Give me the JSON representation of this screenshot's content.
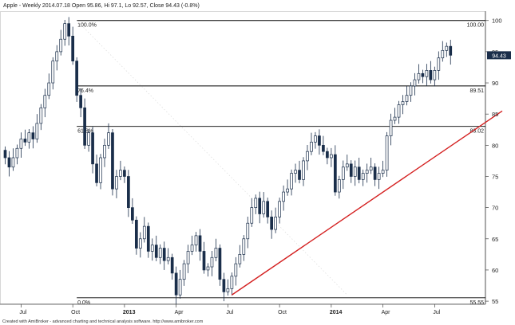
{
  "header": {
    "title": "Apple - Weekly 2014.07.18  Open 95.86, Hi 97.1, Lo 92.57, Close 94.43 (-0.8%)"
  },
  "footer": {
    "credit": "Created with AmiBroker - advanced charting and technical analysis software. http://www.amibroker.com"
  },
  "colors": {
    "up_fill": "#ffffff",
    "down_fill": "#1a2e4a",
    "candle_outline": "#1a2e4a",
    "trendline": "#d42020",
    "fib_line": "#000000",
    "last_price_badge": "#1a2e4a"
  },
  "chart_data": {
    "type": "candlestick",
    "title": "Apple - Weekly 2014.07.18  Open 95.86, Hi 97.1, Lo 92.57, Close 94.43 (-0.8%)",
    "ylim": [
      54.5,
      101.5
    ],
    "y_ticks": [
      55,
      60,
      65,
      70,
      75,
      80,
      85,
      90,
      95,
      100
    ],
    "x_ticks": [
      {
        "label": "Jul",
        "index": 4
      },
      {
        "label": "Oct",
        "index": 17
      },
      {
        "label": "2013",
        "index": 30,
        "bold": true
      },
      {
        "label": "Apr",
        "index": 43
      },
      {
        "label": "Jul",
        "index": 56
      },
      {
        "label": "Oct",
        "index": 69
      },
      {
        "label": "2014",
        "index": 82,
        "bold": true
      },
      {
        "label": "Apr",
        "index": 95
      },
      {
        "label": "Jul",
        "index": 108
      }
    ],
    "fibonacci": [
      {
        "level": "100.0%",
        "price": 100.0,
        "price_label": "100.00"
      },
      {
        "level": "76.4%",
        "price": 89.51,
        "price_label": "89.51"
      },
      {
        "level": "61.8%",
        "price": 83.02,
        "price_label": "83.02"
      },
      {
        "level": "0.0%",
        "price": 55.55,
        "price_label": "55.55"
      }
    ],
    "fib_start_index": 18,
    "trendline": {
      "start": [
        57,
        56.0
      ],
      "end": [
        125,
        85.5
      ]
    },
    "last_price": {
      "value": 94.43,
      "label": "94.43"
    },
    "closes": [
      78,
      76.5,
      78,
      79.5,
      81,
      80.5,
      82,
      81,
      83.5,
      86,
      88,
      90,
      93.5,
      95,
      97,
      99.5,
      97.5,
      93.5,
      88,
      86,
      80,
      82,
      77,
      74,
      78,
      80,
      82,
      73,
      75,
      76,
      75,
      70,
      68,
      63.5,
      65,
      67,
      63,
      64,
      62,
      63.5,
      61.5,
      62,
      59.5,
      56,
      58.5,
      61,
      63,
      64,
      65.5,
      63,
      60,
      60.5,
      62,
      63.5,
      58.5,
      56.5,
      57,
      59,
      61,
      62.5,
      65,
      67.5,
      70,
      71.5,
      69,
      71,
      68.5,
      66.5,
      68.5,
      71,
      72.5,
      73,
      75.5,
      76,
      74.5,
      77.5,
      79,
      80.5,
      81.5,
      80,
      79,
      78,
      78.5,
      72.5,
      74.5,
      76.5,
      77,
      75,
      76.5,
      74.5,
      75.5,
      76,
      76.5,
      74.5,
      75.5,
      76,
      81.5,
      84,
      84.5,
      86.5,
      87,
      88,
      89.5,
      90.5,
      91.5,
      91,
      92,
      90.5,
      92,
      94,
      95.2,
      95.86,
      94.43
    ]
  }
}
